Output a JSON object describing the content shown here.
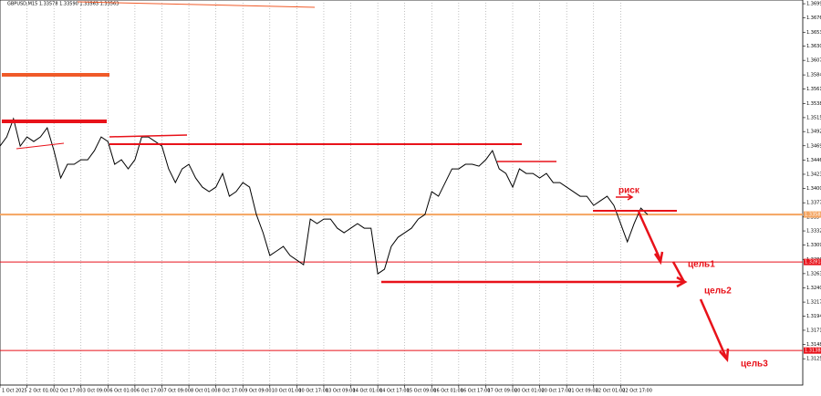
{
  "chart_data": {
    "type": "line",
    "title": "GBPUSD,M15  1.33578 1.33590 1.33563 1.33563",
    "color": "#000000",
    "grid": true,
    "xlim": [
      0,
      119
    ],
    "ylim": [
      1.3083,
      1.3705
    ],
    "xticks": [
      {
        "value": 0,
        "label": "1 Oct 2025"
      },
      {
        "value": 4,
        "label": "2 Oct 01:00"
      },
      {
        "value": 8,
        "label": "2 Oct 17:00"
      },
      {
        "value": 12,
        "label": "3 Oct 09:00"
      },
      {
        "value": 16,
        "label": "6 Oct 01:00"
      },
      {
        "value": 20,
        "label": "6 Oct 17:00"
      },
      {
        "value": 24,
        "label": "7 Oct 09:00"
      },
      {
        "value": 28,
        "label": "8 Oct 01:00"
      },
      {
        "value": 32,
        "label": "8 Oct 17:00"
      },
      {
        "value": 36,
        "label": "9 Oct 09:00"
      },
      {
        "value": 40,
        "label": "10 Oct 01:00"
      },
      {
        "value": 44,
        "label": "10 Oct 17:00"
      },
      {
        "value": 48,
        "label": "13 Oct 09:00"
      },
      {
        "value": 52,
        "label": "14 Oct 01:00"
      },
      {
        "value": 56,
        "label": "14 Oct 17:00"
      },
      {
        "value": 60,
        "label": "15 Oct 09:00"
      },
      {
        "value": 64,
        "label": "16 Oct 01:00"
      },
      {
        "value": 68,
        "label": "16 Oct 17:00"
      },
      {
        "value": 72,
        "label": "17 Oct 09:00"
      },
      {
        "value": 76,
        "label": "20 Oct 01:00"
      },
      {
        "value": 80,
        "label": "20 Oct 17:00"
      },
      {
        "value": 84,
        "label": "21 Oct 09:00"
      },
      {
        "value": 88,
        "label": "22 Oct 01:00"
      },
      {
        "value": 92,
        "label": "22 Oct 17:00"
      }
    ],
    "yticks": [
      {
        "value": 1.3699,
        "label": "1.36990"
      },
      {
        "value": 1.3676,
        "label": "1.36760"
      },
      {
        "value": 1.3653,
        "label": "1.36530"
      },
      1.36305,
      1.36075,
      {
        "value": 1.3584,
        "label": "1.35840"
      },
      {
        "value": 1.3561,
        "label": "1.35610"
      },
      {
        "value": 1.3538,
        "label": "1.35380"
      },
      {
        "value": 1.3515,
        "label": "1.35150"
      },
      1.34925,
      1.34695,
      1.34465,
      1.34235,
      1.34005,
      1.33775,
      1.33545,
      {
        "value": 1.3332,
        "label": "1.33320"
      },
      {
        "value": 1.3309,
        "label": "1.33090"
      },
      {
        "value": 1.3286,
        "label": "1.32860"
      },
      {
        "value": 1.3263,
        "label": "1.32630"
      },
      {
        "value": 1.324,
        "label": "1.32400"
      },
      {
        "value": 1.3217,
        "label": "1.32170"
      },
      1.31945,
      1.31715,
      1.31485,
      1.31255
    ],
    "values": [
      1.3469,
      1.34838,
      1.35133,
      1.3469,
      1.34838,
      1.34764,
      1.34838,
      1.34985,
      1.34617,
      1.34175,
      1.34396,
      1.34396,
      1.34469,
      1.34469,
      1.34617,
      1.34838,
      1.34764,
      1.34396,
      1.34469,
      1.34322,
      1.34469,
      1.34838,
      1.34838,
      1.34764,
      1.3469,
      1.34322,
      1.34101,
      1.34322,
      1.34396,
      1.34175,
      1.34027,
      1.33954,
      1.34027,
      1.34248,
      1.3388,
      1.33954,
      1.34101,
      1.34027,
      1.33585,
      1.3329,
      1.32922,
      1.32995,
      1.33069,
      1.32922,
      1.32848,
      1.32774,
      1.33511,
      1.33438,
      1.33511,
      1.33511,
      1.33364,
      1.3329,
      1.33364,
      1.33438,
      1.33364,
      1.33364,
      1.32627,
      1.32701,
      1.33069,
      1.33217,
      1.3329,
      1.33364,
      1.33511,
      1.33585,
      1.33954,
      1.3388,
      1.34101,
      1.34322,
      1.34322,
      1.34396,
      1.34396,
      1.34366,
      1.34469,
      1.34617,
      1.34322,
      1.34248,
      1.34027,
      1.34322,
      1.34248,
      1.34248,
      1.34175,
      1.34248,
      1.34101,
      1.34101,
      1.34027,
      1.33954,
      1.3388,
      1.3388,
      1.33732,
      1.33806,
      1.3388,
      1.33732,
      1.33438,
      1.33143,
      1.33438,
      1.33688,
      1.33585
    ],
    "levels": [
      {
        "value": 1.33585,
        "color": "#f4a460"
      },
      {
        "value": 1.32818,
        "color": "#e8121a"
      },
      {
        "value": 1.31388,
        "color": "#e8121a"
      }
    ],
    "annotations": [
      "риск",
      "цель1",
      "цель2",
      "цель3"
    ]
  }
}
